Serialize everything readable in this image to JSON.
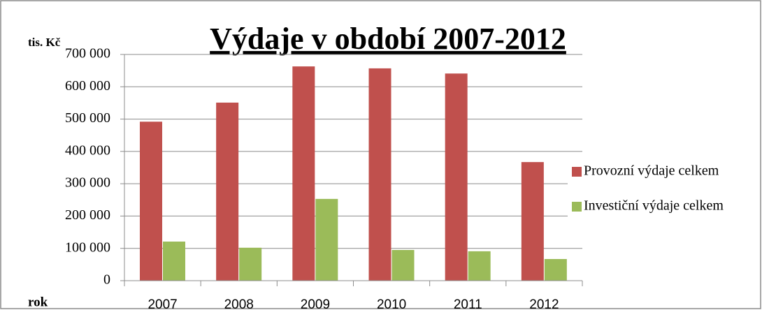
{
  "chart_data": {
    "type": "bar",
    "title": "Výdaje v období 2007-2012",
    "y_label": "tis. Kč",
    "x_label": "rok",
    "categories": [
      "2007",
      "2008",
      "2009",
      "2010",
      "2011",
      "2012"
    ],
    "series": [
      {
        "name": "Provozní výdaje celkem",
        "color": "#c0504d",
        "values": [
          492000,
          551000,
          663000,
          657000,
          641000,
          367000
        ]
      },
      {
        "name": "Investiční výdaje celkem",
        "color": "#9bbb59",
        "values": [
          121000,
          102000,
          253000,
          95000,
          91000,
          67000
        ]
      }
    ],
    "ylim": [
      0,
      700000
    ],
    "yticks": [
      0,
      {
        "value": 100000,
        "label": "100 000"
      },
      {
        "value": 200000,
        "label": "200 000"
      },
      {
        "value": 300000,
        "label": "300 000"
      },
      {
        "value": 400000,
        "label": "400 000"
      },
      {
        "value": 500000,
        "label": "500 000"
      },
      {
        "value": 600000,
        "label": "600 000"
      },
      {
        "value": 700000,
        "label": "700 000"
      }
    ],
    "grid": true,
    "legend": "right"
  }
}
